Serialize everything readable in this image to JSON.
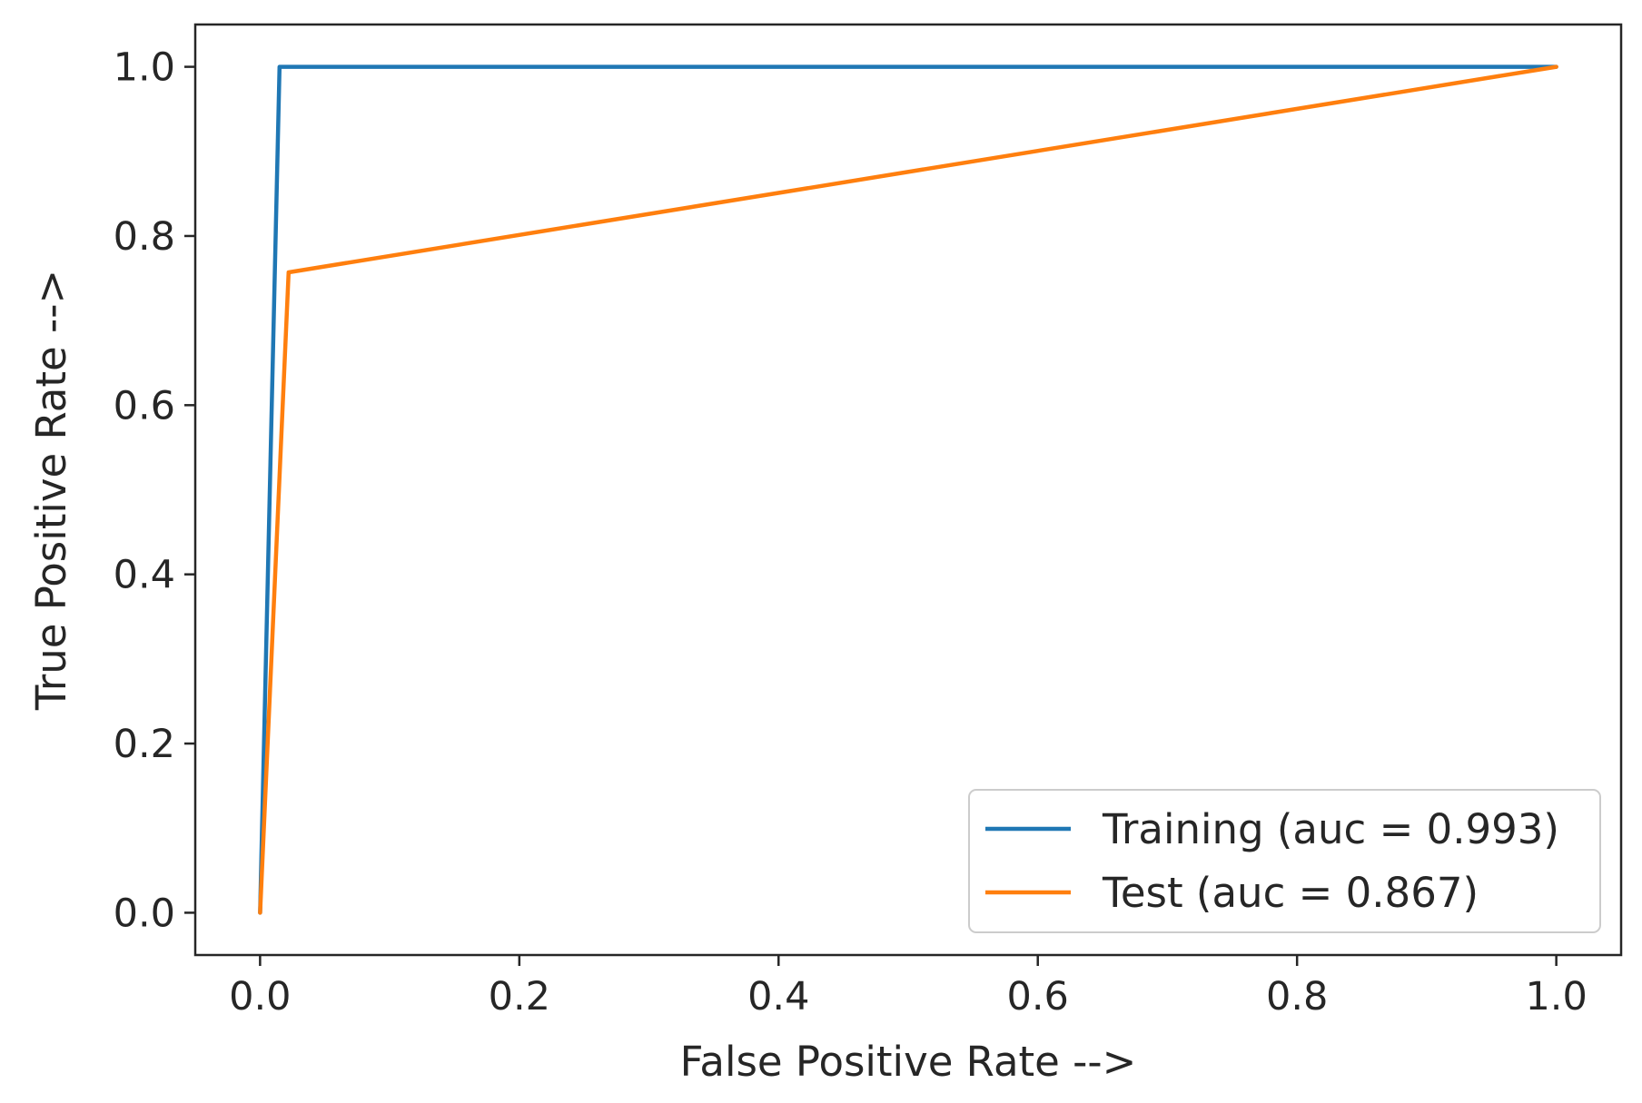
{
  "chart_data": {
    "type": "line",
    "title": "",
    "xlabel": "False Positive Rate -->",
    "ylabel": "True Positive Rate -->",
    "xlim": [
      -0.05,
      1.05
    ],
    "ylim": [
      -0.05,
      1.05
    ],
    "xticks": [
      0.0,
      0.2,
      0.4,
      0.6,
      0.8,
      1.0
    ],
    "yticks": [
      0.0,
      0.2,
      0.4,
      0.6,
      0.8,
      1.0
    ],
    "xtick_labels": [
      "0.0",
      "0.2",
      "0.4",
      "0.6",
      "0.8",
      "1.0"
    ],
    "ytick_labels": [
      "0.0",
      "0.2",
      "0.4",
      "0.6",
      "0.8",
      "1.0"
    ],
    "legend_position": "lower-right",
    "series": [
      {
        "name": "Training (auc = 0.993)",
        "color": "#1f77b4",
        "x": [
          0.0,
          0.015,
          1.0
        ],
        "y": [
          0.0,
          1.0,
          1.0
        ]
      },
      {
        "name": "Test (auc = 0.867)",
        "color": "#ff7f0e",
        "x": [
          0.0,
          0.022,
          1.0
        ],
        "y": [
          0.0,
          0.757,
          1.0
        ]
      }
    ]
  }
}
